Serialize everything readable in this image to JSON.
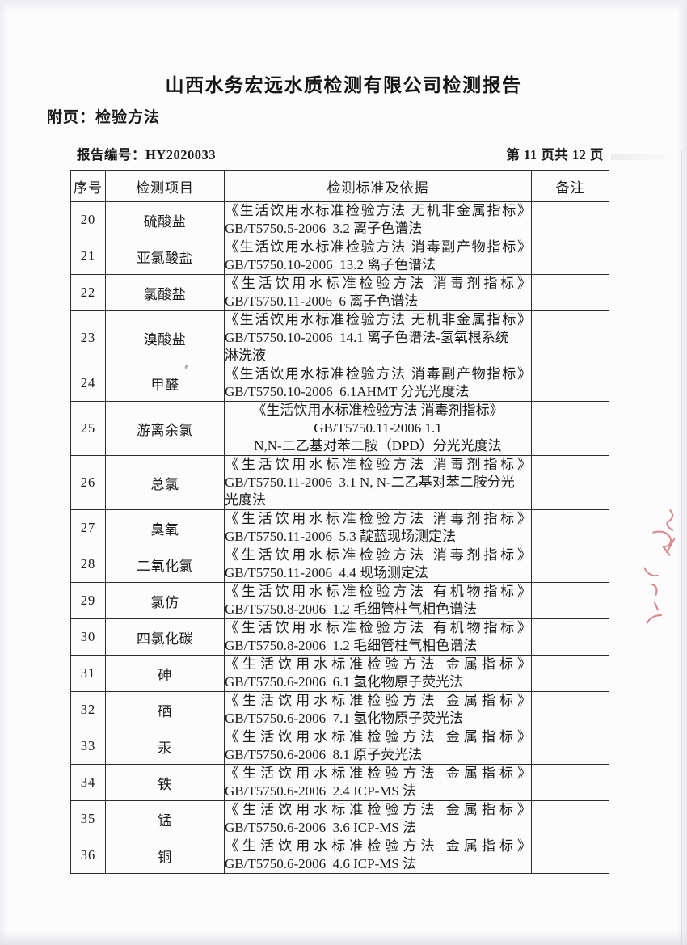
{
  "page": {
    "title": "山西水务宏远水质检测有限公司检测报告",
    "subtitle": "附页：检验方法",
    "report_no_label": "报告编号：",
    "report_no": "HY2020033",
    "page_indicator": "第 11 页共 12 页"
  },
  "table": {
    "headers": [
      "序号",
      "检测项目",
      "检测标准及依据",
      "备注"
    ],
    "rows": [
      {
        "no": "20",
        "item": "硫酸盐",
        "standard_lines": [
          "《生活饮用水标准检验方法 无机非金属指标》",
          "GB/T5750.5-2006  3.2 离子色谱法"
        ],
        "note": ""
      },
      {
        "no": "21",
        "item": "亚氯酸盐",
        "standard_lines": [
          "《生活饮用水标准检验方法 消毒副产物指标》",
          "GB/T5750.10-2006  13.2 离子色谱法"
        ],
        "note": ""
      },
      {
        "no": "22",
        "item": "氯酸盐",
        "standard_lines": [
          "《生活饮用水标准检验方法 消毒剂指标》",
          "GB/T5750.11-2006  6 离子色谱法"
        ],
        "note": ""
      },
      {
        "no": "23",
        "item": "溴酸盐",
        "standard_lines": [
          "《生活饮用水标准检验方法 无机非金属指标》",
          "GB/T5750.10-2006  14.1 离子色谱法-氢氧根系统",
          "淋洗液"
        ],
        "note": ""
      },
      {
        "no": "24",
        "item": "甲醛",
        "standard_lines": [
          "《生活饮用水标准检验方法 消毒副产物指标》",
          "GB/T5750.10-2006  6.1AHMT 分光光度法"
        ],
        "note": ""
      },
      {
        "no": "25",
        "item": "游离余氯",
        "center": true,
        "standard_lines": [
          "《生活饮用水标准检验方法 消毒剂指标》",
          "GB/T5750.11-2006 1.1",
          "N,N-二乙基对苯二胺（DPD）分光光度法"
        ],
        "note": ""
      },
      {
        "no": "26",
        "item": "总氯",
        "standard_lines": [
          "《生活饮用水标准检验方法 消毒剂指标》",
          "GB/T5750.11-2006  3.1 N, N-二乙基对苯二胺分光",
          "光度法"
        ],
        "note": ""
      },
      {
        "no": "27",
        "item": "臭氧",
        "standard_lines": [
          "《生活饮用水标准检验方法 消毒剂指标》",
          "GB/T5750.11-2006  5.3 靛蓝现场测定法"
        ],
        "note": ""
      },
      {
        "no": "28",
        "item": "二氧化氯",
        "standard_lines": [
          "《生活饮用水标准检验方法 消毒剂指标》",
          "GB/T5750.11-2006  4.4 现场测定法"
        ],
        "note": ""
      },
      {
        "no": "29",
        "item": "氯仿",
        "standard_lines": [
          "《生活饮用水标准检验方法 有机物指标》",
          "GB/T5750.8-2006  1.2 毛细管柱气相色谱法"
        ],
        "note": ""
      },
      {
        "no": "30",
        "item": "四氯化碳",
        "standard_lines": [
          "《生活饮用水标准检验方法 有机物指标》",
          "GB/T5750.8-2006  1.2 毛细管柱气相色谱法"
        ],
        "note": ""
      },
      {
        "no": "31",
        "item": "砷",
        "standard_lines": [
          "《生活饮用水标准检验方法 金属指标》",
          "GB/T5750.6-2006  6.1 氢化物原子荧光法"
        ],
        "note": ""
      },
      {
        "no": "32",
        "item": "硒",
        "standard_lines": [
          "《生活饮用水标准检验方法 金属指标》",
          "GB/T5750.6-2006  7.1 氢化物原子荧光法"
        ],
        "note": ""
      },
      {
        "no": "33",
        "item": "汞",
        "standard_lines": [
          "《生活饮用水标准检验方法 金属指标》",
          "GB/T5750.6-2006  8.1 原子荧光法"
        ],
        "note": ""
      },
      {
        "no": "34",
        "item": "铁",
        "standard_lines": [
          "《生活饮用水标准检验方法 金属指标》",
          "GB/T5750.6-2006  2.4 ICP-MS 法"
        ],
        "note": ""
      },
      {
        "no": "35",
        "item": "锰",
        "standard_lines": [
          "《生活饮用水标准检验方法 金属指标》",
          "GB/T5750.6-2006  3.6 ICP-MS 法"
        ],
        "note": ""
      },
      {
        "no": "36",
        "item": "铜",
        "standard_lines": [
          "《生活饮用水标准检验方法 金属指标》",
          "GB/T5750.6-2006  4.6 ICP-MS 法"
        ],
        "note": ""
      }
    ]
  },
  "artifacts": {
    "stamp_color": "#c2454f"
  }
}
